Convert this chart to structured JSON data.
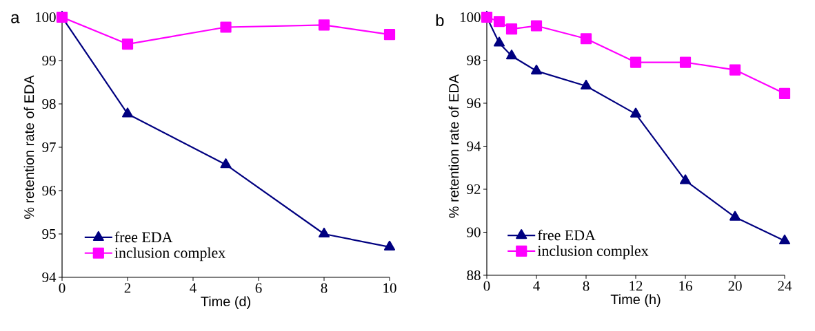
{
  "chart_data": [
    {
      "type": "line",
      "title": "a",
      "xlabel": "Time (d)",
      "ylabel": "% retention rate of EDA",
      "x": [
        0,
        2,
        5,
        8,
        10
      ],
      "xlim": [
        0,
        10
      ],
      "xticks": [
        0,
        2,
        4,
        6,
        8,
        10
      ],
      "ylim": [
        94,
        100
      ],
      "yticks": [
        94,
        95,
        96,
        97,
        98,
        99,
        100
      ],
      "grid": false,
      "legend": "bottom left",
      "line_style": "solid",
      "series": [
        {
          "name": "free EDA",
          "color": "#000080",
          "marker": "triangle",
          "values": [
            100,
            97.77,
            96.6,
            95.0,
            94.7
          ]
        },
        {
          "name": "inclusion complex",
          "color": "#ff00ff",
          "marker": "square",
          "values": [
            100,
            99.38,
            99.77,
            99.82,
            99.6
          ]
        }
      ]
    },
    {
      "type": "line",
      "title": "b",
      "xlabel": "Time (h)",
      "ylabel": "% retention rate of EDA",
      "x": [
        0,
        1,
        2,
        4,
        8,
        12,
        16,
        20,
        24
      ],
      "xlim": [
        0,
        24
      ],
      "xticks": [
        0,
        4,
        8,
        12,
        16,
        20,
        24
      ],
      "ylim": [
        88,
        100
      ],
      "yticks": [
        88,
        90,
        92,
        94,
        96,
        98,
        100
      ],
      "grid": false,
      "legend": "bottom left",
      "line_style": "solid",
      "series": [
        {
          "name": "free EDA",
          "color": "#000080",
          "marker": "triangle",
          "values": [
            100,
            98.8,
            98.2,
            97.5,
            96.8,
            95.5,
            92.4,
            90.7,
            89.6
          ]
        },
        {
          "name": "inclusion complex",
          "color": "#ff00ff",
          "marker": "square",
          "values": [
            100,
            99.8,
            99.45,
            99.6,
            99.0,
            97.9,
            97.9,
            97.55,
            96.45
          ]
        }
      ]
    }
  ]
}
